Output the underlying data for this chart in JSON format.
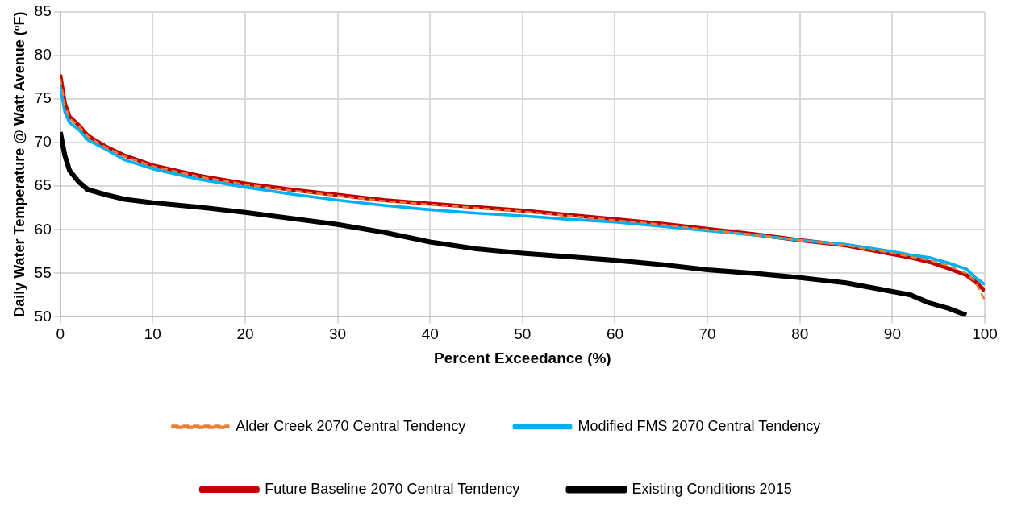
{
  "chart_data": {
    "type": "line",
    "xlabel": "Percent Exceedance (%)",
    "ylabel": "Daily Water Temperature @ Watt Avenue (ºF)",
    "x": [
      0,
      0.5,
      1,
      2,
      3,
      5,
      7,
      10,
      15,
      20,
      25,
      30,
      35,
      40,
      45,
      50,
      55,
      60,
      65,
      70,
      75,
      80,
      85,
      90,
      92,
      94,
      96,
      98,
      99,
      100
    ],
    "series": [
      {
        "name": "Existing Conditions 2015",
        "color": "#000000",
        "line_style": "solid",
        "values": [
          71.2,
          68.5,
          66.8,
          65.5,
          64.6,
          64.0,
          63.5,
          63.1,
          62.6,
          62.0,
          61.3,
          60.6,
          59.7,
          58.6,
          57.8,
          57.3,
          56.9,
          56.5,
          56.0,
          55.4,
          55.0,
          54.5,
          53.9,
          52.9,
          52.5,
          51.6,
          51.0,
          50.2,
          null,
          null
        ]
      },
      {
        "name": "Future Baseline 2070 Central Tendency",
        "color": "#c00000",
        "line_style": "solid",
        "values": [
          77.8,
          74.5,
          73.0,
          72.0,
          70.8,
          69.5,
          68.5,
          67.4,
          66.2,
          65.3,
          64.6,
          64.0,
          63.4,
          63.0,
          62.6,
          62.2,
          61.7,
          61.2,
          60.7,
          60.1,
          59.5,
          58.8,
          58.2,
          57.2,
          56.8,
          56.3,
          55.6,
          54.8,
          54.0,
          53.0
        ]
      },
      {
        "name": "Modified FMS 2070 Central Tendency",
        "color": "#00b0f0",
        "line_style": "solid",
        "values": [
          76.5,
          73.5,
          72.3,
          71.5,
          70.3,
          69.2,
          68.0,
          67.0,
          65.8,
          64.9,
          64.1,
          63.4,
          62.8,
          62.3,
          61.9,
          61.6,
          61.2,
          60.9,
          60.4,
          59.9,
          59.4,
          58.8,
          58.3,
          57.5,
          57.1,
          56.8,
          56.2,
          55.5,
          54.5,
          53.7
        ]
      },
      {
        "name": "Alder Creek 2070 Central Tendency",
        "color": "#ed7d31",
        "line_style": "dashed",
        "values": [
          77.3,
          74.3,
          72.8,
          71.9,
          70.7,
          69.4,
          68.4,
          67.3,
          66.1,
          65.2,
          64.5,
          63.9,
          63.3,
          62.9,
          62.5,
          62.1,
          61.6,
          61.1,
          60.6,
          60.0,
          59.4,
          58.8,
          58.2,
          57.3,
          56.9,
          56.5,
          55.9,
          55.0,
          54.0,
          51.9
        ]
      }
    ],
    "xlim": [
      0,
      100
    ],
    "xticks": [
      0,
      10,
      20,
      30,
      40,
      50,
      60,
      70,
      80,
      90,
      100
    ],
    "ylim": [
      50,
      85
    ],
    "yticks": [
      50,
      55,
      60,
      65,
      70,
      75,
      80,
      85
    ],
    "grid": true,
    "legend": "bottom",
    "marker": "none"
  }
}
